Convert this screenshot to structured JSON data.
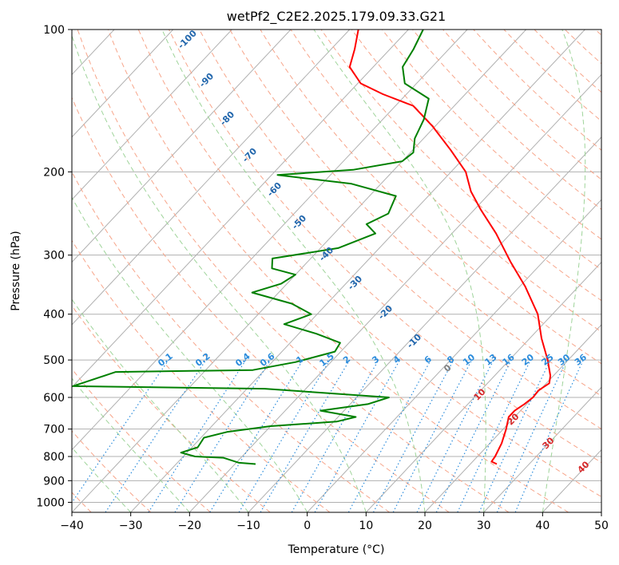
{
  "chart_data": {
    "type": "skew-t",
    "title": "wetPf2_C2E2.2025.179.09.33.G21",
    "xlabel": "Temperature (°C)",
    "ylabel": "Pressure (hPa)",
    "xlim": [
      -40,
      50
    ],
    "ylim": [
      1050,
      100
    ],
    "y_log_scale": true,
    "grid": true,
    "x_ticks": [
      "−40",
      "−30",
      "−20",
      "−10",
      "0",
      "10",
      "20",
      "30",
      "40",
      "50"
    ],
    "y_ticks": [
      "100",
      "200",
      "300",
      "400",
      "500",
      "600",
      "700",
      "800",
      "900",
      "1000"
    ],
    "dry_adiabat_labels": [
      "-100",
      "-90",
      "-80",
      "-70",
      "-60",
      "-50",
      "-40",
      "-30",
      "-20",
      "-10",
      "0",
      "10",
      "20",
      "30",
      "40"
    ],
    "mixing_ratio_labels": [
      "0.1",
      "0.2",
      "0.4",
      "0.6",
      "1",
      "1.5",
      "2",
      "3",
      "4",
      "6",
      "8",
      "10",
      "13",
      "16",
      "20",
      "25",
      "30",
      "36"
    ],
    "colors": {
      "temperature": "#ff0000",
      "dewpoint": "#008000",
      "isotherm": "#b0b0b0",
      "dry_adiabat": "#f7a58a",
      "moist_adiabat": "#9fd49a",
      "mixing_ratio": "#2b8cdc",
      "dry_label_cold": "#2166ac",
      "dry_label_warm": "#d62728",
      "dry_label_zero": "#808080"
    },
    "series": [
      {
        "name": "",
        "role": "temperature",
        "points": [
          {
            "t": 24.5,
            "p": 830
          },
          {
            "t": 23.2,
            "p": 820
          },
          {
            "t": 23.0,
            "p": 800
          },
          {
            "t": 22.0,
            "p": 750
          },
          {
            "t": 20.5,
            "p": 700
          },
          {
            "t": 19.0,
            "p": 660
          },
          {
            "t": 19.0,
            "p": 640
          },
          {
            "t": 19.6,
            "p": 620
          },
          {
            "t": 20.0,
            "p": 600
          },
          {
            "t": 19.8,
            "p": 580
          },
          {
            "t": 20.5,
            "p": 560
          },
          {
            "t": 19.5,
            "p": 540
          },
          {
            "t": 16.5,
            "p": 500
          },
          {
            "t": 12.0,
            "p": 450
          },
          {
            "t": 7.5,
            "p": 400
          },
          {
            "t": 1.0,
            "p": 350
          },
          {
            "t": -5.5,
            "p": 310
          },
          {
            "t": -12.5,
            "p": 270
          },
          {
            "t": -19.0,
            "p": 240
          },
          {
            "t": -23.5,
            "p": 220
          },
          {
            "t": -27.5,
            "p": 200
          },
          {
            "t": -33.5,
            "p": 180
          },
          {
            "t": -40.5,
            "p": 160
          },
          {
            "t": -47.0,
            "p": 145
          },
          {
            "t": -54.0,
            "p": 137
          },
          {
            "t": -59.5,
            "p": 130
          },
          {
            "t": -64.0,
            "p": 120
          },
          {
            "t": -66.0,
            "p": 110
          },
          {
            "t": -68.5,
            "p": 100
          }
        ]
      },
      {
        "name": "",
        "role": "dewpoint",
        "points": [
          {
            "t": -16.5,
            "p": 830
          },
          {
            "t": -19.5,
            "p": 825
          },
          {
            "t": -23.0,
            "p": 805
          },
          {
            "t": -28.0,
            "p": 800
          },
          {
            "t": -31.0,
            "p": 785
          },
          {
            "t": -29.0,
            "p": 765
          },
          {
            "t": -29.5,
            "p": 730
          },
          {
            "t": -26.5,
            "p": 710
          },
          {
            "t": -20.0,
            "p": 690
          },
          {
            "t": -9.5,
            "p": 675
          },
          {
            "t": -7.0,
            "p": 660
          },
          {
            "t": -14.0,
            "p": 640
          },
          {
            "t": -7.0,
            "p": 620
          },
          {
            "t": -4.5,
            "p": 600
          },
          {
            "t": -27.0,
            "p": 575
          },
          {
            "t": -60.0,
            "p": 568
          },
          {
            "t": -55.0,
            "p": 530
          },
          {
            "t": -32.0,
            "p": 525
          },
          {
            "t": -26.0,
            "p": 505
          },
          {
            "t": -21.0,
            "p": 480
          },
          {
            "t": -21.5,
            "p": 460
          },
          {
            "t": -27.0,
            "p": 440
          },
          {
            "t": -34.0,
            "p": 420
          },
          {
            "t": -31.0,
            "p": 400
          },
          {
            "t": -36.0,
            "p": 380
          },
          {
            "t": -44.5,
            "p": 360
          },
          {
            "t": -41.0,
            "p": 345
          },
          {
            "t": -40.0,
            "p": 330
          },
          {
            "t": -45.0,
            "p": 320
          },
          {
            "t": -46.5,
            "p": 305
          },
          {
            "t": -37.0,
            "p": 290
          },
          {
            "t": -33.0,
            "p": 270
          },
          {
            "t": -36.0,
            "p": 258
          },
          {
            "t": -34.0,
            "p": 245
          },
          {
            "t": -35.5,
            "p": 225
          },
          {
            "t": -45.0,
            "p": 212
          },
          {
            "t": -59.0,
            "p": 203
          },
          {
            "t": -47.0,
            "p": 198
          },
          {
            "t": -40.0,
            "p": 190
          },
          {
            "t": -39.5,
            "p": 182
          },
          {
            "t": -41.5,
            "p": 170
          },
          {
            "t": -43.0,
            "p": 155
          },
          {
            "t": -45.5,
            "p": 140
          },
          {
            "t": -52.0,
            "p": 130
          },
          {
            "t": -55.0,
            "p": 120
          },
          {
            "t": -56.0,
            "p": 110
          },
          {
            "t": -57.5,
            "p": 100
          }
        ]
      }
    ]
  }
}
